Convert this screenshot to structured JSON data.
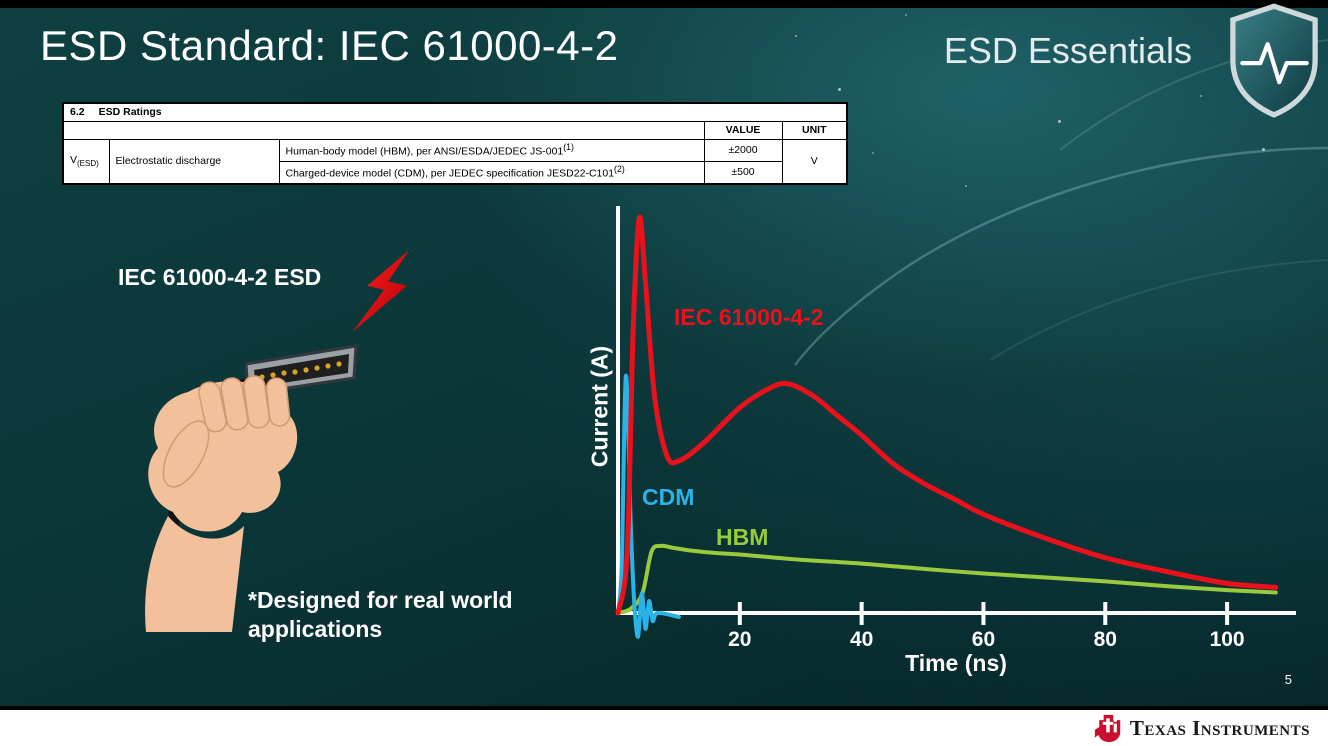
{
  "slide": {
    "title": "ESD Standard: IEC 61000-4-2",
    "brand": "ESD Essentials",
    "page_number": "5",
    "footer_brand": "Texas Instruments"
  },
  "ratings_table": {
    "section_number": "6.2",
    "section_title": "ESD Ratings",
    "col_value": "VALUE",
    "col_unit": "UNIT",
    "symbol_main": "V",
    "symbol_sub": "(ESD)",
    "parameter": "Electrostatic discharge",
    "rows": [
      {
        "description": "Human-body model (HBM), per ANSI/ESDA/JEDEC JS-001",
        "sup": "(1)",
        "value": "±2000"
      },
      {
        "description": "Charged-device model (CDM), per JEDEC specification JESD22-C101",
        "sup": "(2)",
        "value": "±500"
      }
    ],
    "unit": "V"
  },
  "illustration": {
    "caption": "IEC 61000-4-2 ESD",
    "note": "*Designed for real world applications"
  },
  "chart_data": {
    "type": "line",
    "title": "",
    "xlabel": "Time (ns)",
    "ylabel": "Current (A)",
    "xlim": [
      0,
      110
    ],
    "ylim": [
      -0.08,
      1.05
    ],
    "x_ticks": [
      20,
      40,
      60,
      80,
      100
    ],
    "grid": false,
    "legend_position": "inline-labels",
    "series": [
      {
        "name": "IEC 61000-4-2",
        "color": "#e8111c",
        "points": [
          [
            0,
            0
          ],
          [
            1.5,
            0.15
          ],
          [
            2.5,
            0.72
          ],
          [
            3.5,
            1.0
          ],
          [
            4.5,
            0.84
          ],
          [
            6,
            0.55
          ],
          [
            8,
            0.4
          ],
          [
            10,
            0.385
          ],
          [
            14,
            0.43
          ],
          [
            20,
            0.52
          ],
          [
            25,
            0.57
          ],
          [
            28,
            0.58
          ],
          [
            32,
            0.55
          ],
          [
            36,
            0.5
          ],
          [
            40,
            0.45
          ],
          [
            45,
            0.38
          ],
          [
            50,
            0.33
          ],
          [
            55,
            0.29
          ],
          [
            60,
            0.25
          ],
          [
            70,
            0.19
          ],
          [
            80,
            0.14
          ],
          [
            90,
            0.105
          ],
          [
            100,
            0.075
          ],
          [
            108,
            0.065
          ]
        ]
      },
      {
        "name": "CDM",
        "color": "#2bb3e8",
        "points": [
          [
            0,
            0
          ],
          [
            0.6,
            0.12
          ],
          [
            1.3,
            0.6
          ],
          [
            2.1,
            0.22
          ],
          [
            2.7,
            0.02
          ],
          [
            3.3,
            -0.06
          ],
          [
            3.9,
            0.05
          ],
          [
            4.5,
            -0.04
          ],
          [
            5.1,
            0.03
          ],
          [
            5.7,
            -0.02
          ],
          [
            6.5,
            0
          ],
          [
            10,
            -0.01
          ]
        ]
      },
      {
        "name": "HBM",
        "color": "#97ca3d",
        "points": [
          [
            0,
            0
          ],
          [
            2,
            0.01
          ],
          [
            4,
            0.05
          ],
          [
            5.5,
            0.155
          ],
          [
            7,
            0.17
          ],
          [
            9,
            0.165
          ],
          [
            12,
            0.158
          ],
          [
            16,
            0.152
          ],
          [
            20,
            0.148
          ],
          [
            30,
            0.135
          ],
          [
            40,
            0.125
          ],
          [
            50,
            0.112
          ],
          [
            60,
            0.1
          ],
          [
            70,
            0.09
          ],
          [
            80,
            0.08
          ],
          [
            90,
            0.068
          ],
          [
            100,
            0.058
          ],
          [
            108,
            0.052
          ]
        ]
      }
    ]
  }
}
